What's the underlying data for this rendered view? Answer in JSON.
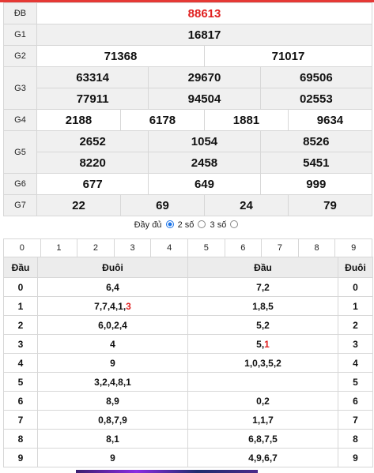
{
  "results": {
    "special": {
      "label": "ĐB",
      "value": "88613"
    },
    "g1": {
      "label": "G1",
      "values": [
        "16817"
      ]
    },
    "g2": {
      "label": "G2",
      "values": [
        "71368",
        "71017"
      ]
    },
    "g3": {
      "label": "G3",
      "values": [
        "63314",
        "29670",
        "69506",
        "77911",
        "94504",
        "02553"
      ]
    },
    "g4": {
      "label": "G4",
      "values": [
        "2188",
        "6178",
        "1881",
        "9634"
      ]
    },
    "g5": {
      "label": "G5",
      "values": [
        "2652",
        "1054",
        "8526",
        "8220",
        "2458",
        "5451"
      ]
    },
    "g6": {
      "label": "G6",
      "values": [
        "677",
        "649",
        "999"
      ]
    },
    "g7": {
      "label": "G7",
      "values": [
        "22",
        "69",
        "24",
        "79"
      ]
    }
  },
  "mode": {
    "full": "Đầy đủ",
    "two": "2 số",
    "three": "3 số",
    "selected": "full"
  },
  "digit_filter": [
    "0",
    "1",
    "2",
    "3",
    "4",
    "5",
    "6",
    "7",
    "8",
    "9"
  ],
  "loto": {
    "headers": {
      "dau": "Đầu",
      "duoi": "Đuôi",
      "dau2": "Đầu",
      "duoi2": "Đuôi"
    },
    "rows": [
      {
        "n": "0",
        "duoi": "6,4",
        "duoi_red": "",
        "dau": "7,2",
        "dau_red": ""
      },
      {
        "n": "1",
        "duoi": "7,7,4,1,",
        "duoi_red": "3",
        "dau": "1,8,5",
        "dau_red": ""
      },
      {
        "n": "2",
        "duoi": "6,0,2,4",
        "duoi_red": "",
        "dau": "5,2",
        "dau_red": ""
      },
      {
        "n": "3",
        "duoi": "4",
        "duoi_red": "",
        "dau": "5,",
        "dau_red": "1"
      },
      {
        "n": "4",
        "duoi": "9",
        "duoi_red": "",
        "dau": "1,0,3,5,2",
        "dau_red": ""
      },
      {
        "n": "5",
        "duoi": "3,2,4,8,1",
        "duoi_red": "",
        "dau": "",
        "dau_red": ""
      },
      {
        "n": "6",
        "duoi": "8,9",
        "duoi_red": "",
        "dau": "0,2",
        "dau_red": ""
      },
      {
        "n": "7",
        "duoi": "0,8,7,9",
        "duoi_red": "",
        "dau": "1,1,7",
        "dau_red": ""
      },
      {
        "n": "8",
        "duoi": "8,1",
        "duoi_red": "",
        "dau": "6,8,7,5",
        "dau_red": ""
      },
      {
        "n": "9",
        "duoi": "9",
        "duoi_red": "",
        "dau": "4,9,6,7",
        "dau_red": ""
      }
    ]
  },
  "colors": {
    "accent": "#e02020",
    "radio": "#1a73e8",
    "header_bg": "#ececec"
  }
}
